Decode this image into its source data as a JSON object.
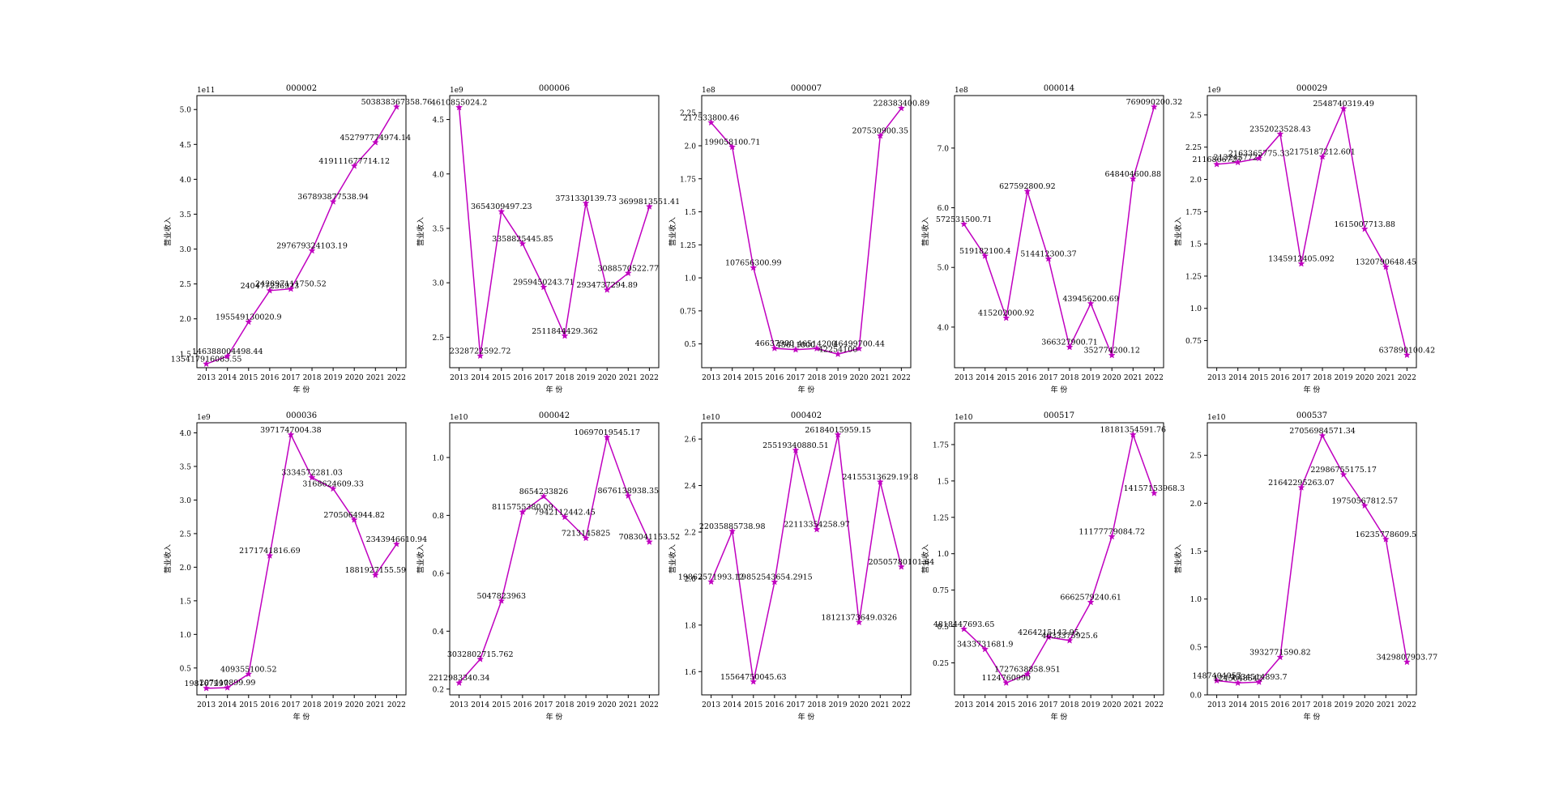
{
  "figure": {
    "xlabel": "年 份",
    "ylabel": "营业收入",
    "line_color": "#c000c0"
  },
  "chart_data": [
    {
      "type": "line",
      "title": "000002",
      "x": [
        2013,
        2014,
        2015,
        2016,
        2017,
        2018,
        2019,
        2020,
        2021,
        2022
      ],
      "values": [
        135417916085.55,
        146388004498.44,
        195549130020.9,
        240477236923.0,
        242897111750.52,
        297679324103.19,
        367893877538.94,
        419111677714.12,
        452797774974.14,
        503838367358.76
      ],
      "labels": [
        "135417916085.55",
        "146388004498.44",
        "195549130020.9",
        "240477236923",
        "242897111750.52",
        "297679324103.19",
        "367893877538.94",
        "419111677714.12",
        "452797774974.14",
        "503838367358.76"
      ],
      "scale_label": "1e11",
      "ylim": [
        1.3,
        5.2
      ],
      "yticks": [
        1.5,
        2.0,
        2.5,
        3.0,
        3.5,
        4.0,
        4.5,
        5.0
      ]
    },
    {
      "type": "line",
      "title": "000006",
      "x": [
        2013,
        2014,
        2015,
        2016,
        2017,
        2018,
        2019,
        2020,
        2021,
        2022
      ],
      "values": [
        4610855024.2,
        2328722592.72,
        3654309497.23,
        3358825445.85,
        2959450243.71,
        2511844429.362,
        3731330139.73,
        2934737294.89,
        3088570522.77,
        3699813551.41
      ],
      "labels": [
        "4610855024.2",
        "2328722592.72",
        "3654309497.23",
        "3358825445.85",
        "2959450243.71",
        "2511844429.362",
        "3731330139.73",
        "2934737294.89",
        "3088570522.77",
        "3699813551.41"
      ],
      "scale_label": "1e9",
      "ylim": [
        2.22,
        4.72
      ],
      "yticks": [
        2.5,
        3.0,
        3.5,
        4.0,
        4.5
      ]
    },
    {
      "type": "line",
      "title": "000007",
      "x": [
        2013,
        2014,
        2015,
        2016,
        2017,
        2018,
        2019,
        2020,
        2021,
        2022
      ],
      "values": [
        217533800.46,
        199058100.71,
        107656300.99,
        46637900.0,
        45611000.0,
        46514200.0,
        42254100.0,
        46499700.44,
        207530900.35,
        228383400.89
      ],
      "labels": [
        "217533800.46",
        "199058100.71",
        "107656300.99",
        "46637900",
        "45611000",
        "46514200",
        "42254100",
        "46499700.44",
        "207530900.35",
        "228383400.89"
      ],
      "scale_label": "1e8",
      "ylim": [
        0.32,
        2.38
      ],
      "yticks": [
        0.5,
        0.75,
        1.0,
        1.25,
        1.5,
        1.75,
        2.0,
        2.25
      ]
    },
    {
      "type": "line",
      "title": "000014",
      "x": [
        2013,
        2014,
        2015,
        2016,
        2017,
        2018,
        2019,
        2020,
        2021,
        2022
      ],
      "values": [
        572531500.71,
        519182100.4,
        415202000.92,
        627592800.92,
        514412300.37,
        366327900.71,
        439456200.69,
        352774200.12,
        648404600.88,
        769090200.32
      ],
      "labels": [
        "572531500.71",
        "519182100.4",
        "415202000.92",
        "627592800.92",
        "514412300.37",
        "366327900.71",
        "439456200.69",
        "352774200.12",
        "648404600.88",
        "769090200.32"
      ],
      "scale_label": "1e8",
      "ylim": [
        3.32,
        7.88
      ],
      "yticks": [
        4,
        5,
        6,
        7
      ]
    },
    {
      "type": "line",
      "title": "000029",
      "x": [
        2013,
        2014,
        2015,
        2016,
        2017,
        2018,
        2019,
        2020,
        2021,
        2022
      ],
      "values": [
        2116866723.0,
        2132457721.0,
        2163365775.33,
        2352023528.43,
        1345912405.092,
        2175187212.601,
        2548740319.49,
        1615007713.88,
        1320790648.45,
        637890100.42
      ],
      "labels": [
        "2116866723",
        "2132457721",
        "2163365775.33",
        "2352023528.43",
        "1345912405.092",
        "2175187212.601",
        "2548740319.49",
        "1615007713.88",
        "1320790648.45",
        "637890100.42"
      ],
      "scale_label": "1e9",
      "ylim": [
        0.54,
        2.65
      ],
      "yticks": [
        0.75,
        1.0,
        1.25,
        1.5,
        1.75,
        2.0,
        2.25,
        2.5
      ]
    },
    {
      "type": "line",
      "title": "000036",
      "x": [
        2013,
        2014,
        2015,
        2016,
        2017,
        2018,
        2019,
        2020,
        2021,
        2022
      ],
      "values": [
        198167297.0,
        207410899.99,
        409355100.52,
        2171741816.69,
        3971747004.38,
        3334572281.03,
        3168624609.33,
        2705064944.82,
        1881927155.59,
        2343946610.94
      ],
      "labels": [
        "198167297",
        "207410899.99",
        "409355100.52",
        "2171741816.69",
        "3971747004.38",
        "3334572281.03",
        "3168624609.33",
        "2705064944.82",
        "1881927155.59",
        "2343946610.94"
      ],
      "scale_label": "1e9",
      "ylim": [
        0.1,
        4.15
      ],
      "yticks": [
        0.5,
        1.0,
        1.5,
        2.0,
        2.5,
        3.0,
        3.5,
        4.0
      ]
    },
    {
      "type": "line",
      "title": "000042",
      "x": [
        2013,
        2014,
        2015,
        2016,
        2017,
        2018,
        2019,
        2020,
        2021,
        2022
      ],
      "values": [
        2212983340.34,
        3032802715.762,
        5047823963.0,
        8115755380.09,
        8654233826.0,
        7942112442.45,
        7213145825.0,
        10697019545.17,
        8676138938.35,
        7083041153.52
      ],
      "labels": [
        "2212983340.34",
        "3032802715.762",
        "5047823963",
        "8115755380.09",
        "8654233826",
        "7942112442.45",
        "7213145825",
        "10697019545.17",
        "8676138938.35",
        "7083041153.52"
      ],
      "scale_label": "1e10",
      "ylim": [
        0.18,
        1.12
      ],
      "yticks": [
        0.2,
        0.4,
        0.6,
        0.8,
        1.0
      ]
    },
    {
      "type": "line",
      "title": "000402",
      "x": [
        2013,
        2014,
        2015,
        2016,
        2017,
        2018,
        2019,
        2020,
        2021,
        2022
      ],
      "values": [
        19862571993.12,
        22035885738.98,
        15564750045.63,
        19852543654.2915,
        25519340880.51,
        22113354258.97,
        26184015959.15,
        18121373649.0326,
        24155313629.1918,
        20505780101.64
      ],
      "labels": [
        "19862571993.12",
        "22035885738.98",
        "15564750045.63",
        "19852543654.2915",
        "25519340880.51",
        "22113354258.97",
        "26184015959.15",
        "18121373649.0326",
        "24155313629.1918",
        "20505780101.64"
      ],
      "scale_label": "1e10",
      "ylim": [
        1.5,
        2.67
      ],
      "yticks": [
        1.6,
        1.8,
        2.0,
        2.2,
        2.4,
        2.6
      ]
    },
    {
      "type": "line",
      "title": "000517",
      "x": [
        2013,
        2014,
        2015,
        2016,
        2017,
        2018,
        2019,
        2020,
        2021,
        2022
      ],
      "values": [
        4818447693.65,
        3433731681.9,
        1124760990.0,
        1727638858.951,
        4264215143.95,
        4033375925.6,
        6662579240.61,
        11177779084.72,
        18181354591.76,
        14157153968.3
      ],
      "labels": [
        "4818447693.65",
        "3433731681.9",
        "1124760990",
        "1727638858.951",
        "4264215143.95",
        "4033375925.6",
        "6662579240.61",
        "11177779084.72",
        "18181354591.76",
        "14157153968.3"
      ],
      "scale_label": "1e10",
      "ylim": [
        0.03,
        1.9
      ],
      "yticks": [
        0.25,
        0.5,
        0.75,
        1.0,
        1.25,
        1.5,
        1.75
      ]
    },
    {
      "type": "line",
      "title": "000537",
      "x": [
        2013,
        2014,
        2015,
        2016,
        2017,
        2018,
        2019,
        2020,
        2021,
        2022
      ],
      "values": [
        1487404057.0,
        1245048542.0,
        1334514893.7,
        3932771590.82,
        21642295263.07,
        27056984571.34,
        22986755175.17,
        19750567812.57,
        16235778609.5,
        3429807903.77
      ],
      "labels": [
        "1487404057",
        "1245048542",
        "1334514893.7",
        "3932771590.82",
        "21642295263.07",
        "27056984571.34",
        "22986755175.17",
        "19750567812.57",
        "16235778609.5",
        "3429807903.77"
      ],
      "scale_label": "1e10",
      "ylim": [
        0.0,
        2.84
      ],
      "yticks": [
        0.0,
        0.5,
        1.0,
        1.5,
        2.0,
        2.5
      ]
    }
  ]
}
